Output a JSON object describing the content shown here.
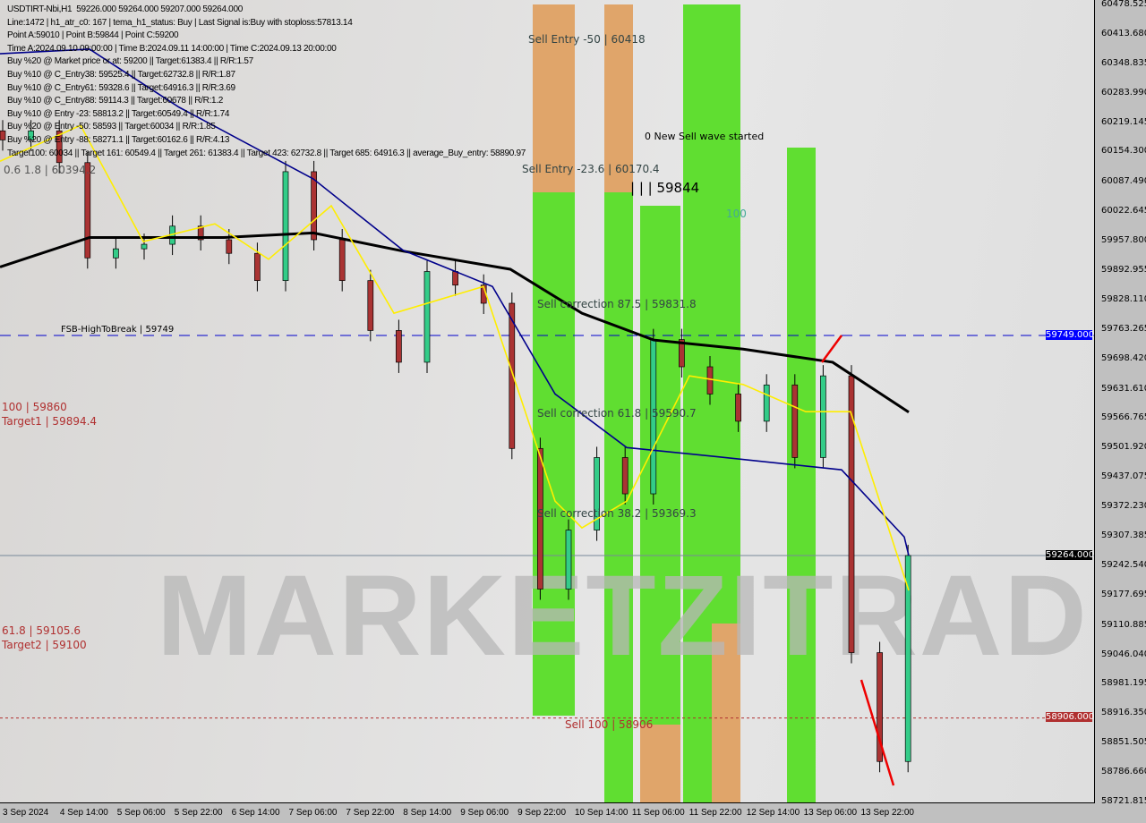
{
  "header": {
    "lines": [
      "USDTIRT-Nbi,H1  59226.000 59264.000 59207.000 59264.000",
      "Line:1472 | h1_atr_c0: 167 | tema_h1_status: Buy | Last Signal is:Buy with stoploss:57813.14",
      "Point A:59010 | Point B:59844 | Point C:59200",
      "Time A:2024.09.10 09:00:00 | Time B:2024.09.11 14:00:00 | Time C:2024.09.13 20:00:00",
      "Buy %20 @ Market price or at: 59200 || Target:61383.4 || R/R:1.57",
      "Buy %10 @ C_Entry38: 59525.4 || Target:62732.8 || R/R:1.87",
      "Buy %10 @ C_Entry61: 59328.6 || Target:64916.3 || R/R:3.69",
      "Buy %10 @ C_Entry88: 59114.3 || Target:60678 || R/R:1.2",
      "Buy %10 @ Entry -23: 58813.2 || Target:60549.4 || R/R:1.74",
      "Buy %20 @ Entry -50: 58593 || Target:60034 || R/R:1.85",
      "Buy %20 @ Entry -88: 58271.1 || Target:60162.6 || R/R:4.13",
      "Target100: 60034 || Target 161: 60549.4 || Target 261: 61383.4 || Target 423: 62732.8 || Target 685: 64916.3 || average_Buy_entry: 58890.97"
    ]
  },
  "annotations": {
    "sell_entry_50": "Sell Entry -50 | 60418",
    "sell_entry_23": "Sell Entry -23.6 | 60170.4",
    "new_wave": "0 New Sell wave started",
    "point_b": "| | | 59844",
    "hundred": "100",
    "corr_875": "Sell correction 87.5 | 59831.8",
    "corr_618": "Sell correction 61.8 | 59590.7",
    "corr_382": "Sell correction 38.2 | 59369.3",
    "sell_100": "Sell 100 | 58906",
    "fsb": "FSB-HighToBreak | 59749",
    "target1": "Target1 | 59894.4",
    "target2": "Target2 | 59100",
    "left_100": "100 | 59860",
    "left_618": "61.8 | 59105.6",
    "left_top": "0.6 1.8 | 60394.2",
    "watermark": "MARKETZITRADE"
  },
  "price_tags": {
    "fsb": "59749.000",
    "current": "59264.000",
    "sell100": "58906.000"
  },
  "colors": {
    "fsb": "#0000ff",
    "current": "#000000",
    "sell100": "#b03030",
    "green_zone": "#55dd22",
    "orange_zone": "#e0a060"
  },
  "chart_data": {
    "type": "candlestick",
    "symbol": "USDTIRT-Nbi",
    "timeframe": "H1",
    "ylim": [
      58721.815,
      60478.525
    ],
    "yticks": [
      "60478.525",
      "60413.680",
      "60348.835",
      "60283.990",
      "60219.145",
      "60154.300",
      "60087.490",
      "60022.645",
      "59957.800",
      "59892.955",
      "59828.110",
      "59763.265",
      "59698.420",
      "59631.610",
      "59566.765",
      "59501.920",
      "59437.075",
      "59372.230",
      "59307.385",
      "59242.540",
      "59177.695",
      "59110.885",
      "59046.040",
      "58981.195",
      "58916.350",
      "58851.505",
      "58786.660",
      "58721.815"
    ],
    "xticks": [
      "3 Sep 2024",
      "4 Sep 14:00",
      "5 Sep 06:00",
      "5 Sep 22:00",
      "6 Sep 14:00",
      "7 Sep 06:00",
      "7 Sep 22:00",
      "8 Sep 14:00",
      "9 Sep 06:00",
      "9 Sep 22:00",
      "10 Sep 14:00",
      "11 Sep 06:00",
      "11 Sep 22:00",
      "12 Sep 14:00",
      "13 Sep 06:00",
      "13 Sep 22:00"
    ],
    "x_start": "3 Sep 22:00",
    "x_step_hours": 8,
    "close": [
      60180,
      60200,
      60130,
      59920,
      59940,
      59950,
      59990,
      59960,
      59930,
      59870,
      60110,
      59960,
      59870,
      59760,
      59690,
      59890,
      59860,
      59820,
      59500,
      59190,
      59320,
      59480,
      59400,
      59740,
      59680,
      59620,
      59560,
      59640,
      59480,
      59660,
      59050,
      58810,
      59264
    ],
    "ma_black": [
      [
        0,
        59900
      ],
      [
        100,
        59965
      ],
      [
        250,
        59965
      ],
      [
        350,
        59975
      ],
      [
        450,
        59935
      ],
      [
        570,
        59895
      ],
      [
        650,
        59798
      ],
      [
        730,
        59739
      ],
      [
        830,
        59719
      ],
      [
        930,
        59690
      ],
      [
        1015,
        59580
      ]
    ],
    "ma_blue": [
      [
        0,
        60370
      ],
      [
        100,
        60380
      ],
      [
        200,
        60252
      ],
      [
        350,
        60094
      ],
      [
        450,
        59937
      ],
      [
        550,
        59857
      ],
      [
        620,
        59620
      ],
      [
        700,
        59502
      ],
      [
        800,
        59482
      ],
      [
        940,
        59453
      ],
      [
        1010,
        59305
      ],
      [
        1015,
        59264
      ]
    ],
    "ma_yellow": [
      [
        0,
        60133
      ],
      [
        90,
        60212
      ],
      [
        160,
        59956
      ],
      [
        240,
        59995
      ],
      [
        300,
        59917
      ],
      [
        370,
        60035
      ],
      [
        440,
        59798
      ],
      [
        540,
        59857
      ],
      [
        620,
        59384
      ],
      [
        650,
        59325
      ],
      [
        700,
        59384
      ],
      [
        770,
        59660
      ],
      [
        830,
        59641
      ],
      [
        900,
        59581
      ],
      [
        950,
        59581
      ],
      [
        1015,
        59187
      ]
    ],
    "hlines": [
      {
        "price": 59749,
        "style": "dashed",
        "color": "#0000cc"
      },
      {
        "price": 59264,
        "style": "solid",
        "color": "#778899"
      },
      {
        "price": 58906,
        "style": "dotted",
        "color": "#b03030"
      }
    ]
  }
}
